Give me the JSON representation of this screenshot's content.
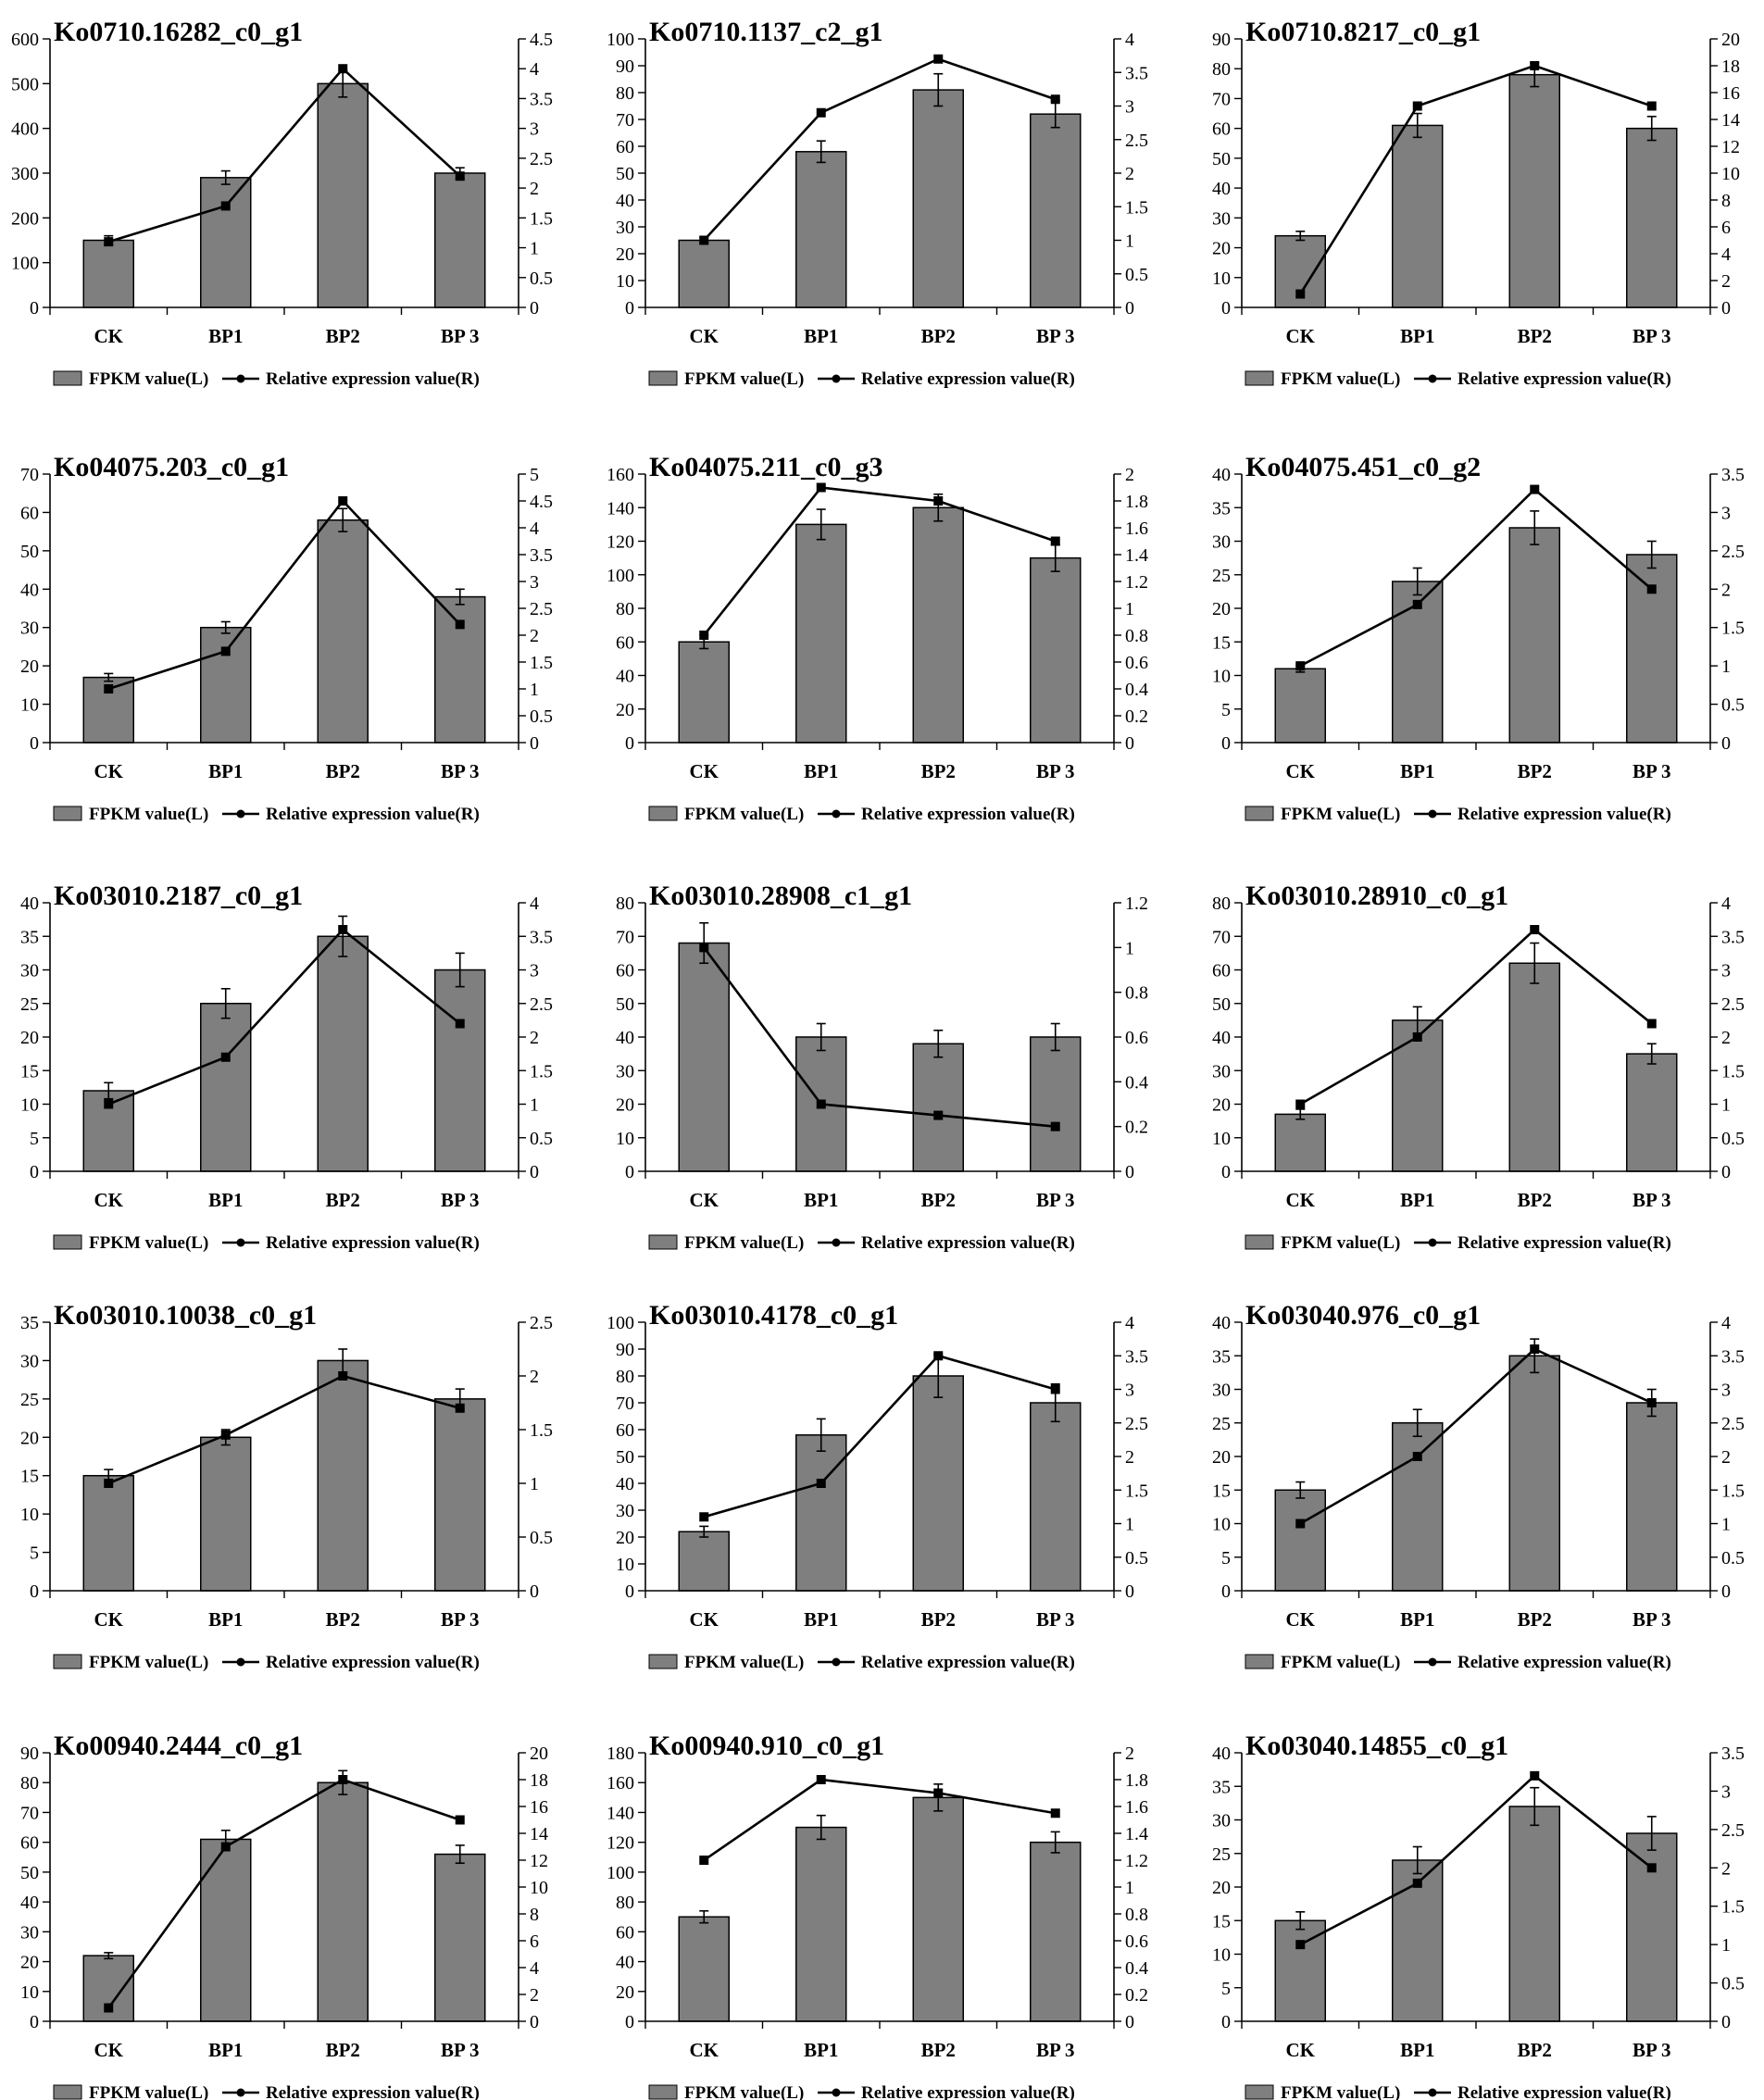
{
  "figure": {
    "legend": {
      "bar_label": "FPKM value(L)",
      "line_label": "Relative expression value(R)"
    },
    "colors": {
      "bar": "#7f7f7f",
      "line": "#000000",
      "axis": "#000000"
    }
  },
  "chart_data": [
    {
      "type": "bar+line",
      "title": "Ko0710.16282_c0_g1",
      "categories": [
        "CK",
        "BP1",
        "BP2",
        "BP 3"
      ],
      "left_ticks": [
        "0",
        "100",
        "200",
        "300",
        "400",
        "500",
        "600"
      ],
      "ylim_left": [
        0,
        600
      ],
      "right_ticks": [
        "0",
        "0.5",
        "1",
        "1.5",
        "2",
        "2.5",
        "3",
        "3.5",
        "4",
        "4.5"
      ],
      "ylim_right": [
        0,
        4.5
      ],
      "fpkm": [
        150,
        290,
        500,
        300
      ],
      "fpkm_err": [
        10,
        15,
        30,
        12
      ],
      "relative": [
        1.1,
        1.7,
        4.0,
        2.2
      ]
    },
    {
      "type": "bar+line",
      "title": "Ko0710.1137_c2_g1",
      "categories": [
        "CK",
        "BP1",
        "BP2",
        "BP 3"
      ],
      "left_ticks": [
        "0",
        "10",
        "20",
        "30",
        "40",
        "50",
        "60",
        "70",
        "80",
        "90",
        "100"
      ],
      "ylim_left": [
        0,
        100
      ],
      "right_ticks": [
        "0",
        "0.5",
        "1",
        "1.5",
        "2",
        "2.5",
        "3",
        "3.5",
        "4"
      ],
      "ylim_right": [
        0,
        4
      ],
      "fpkm": [
        25,
        58,
        81,
        72
      ],
      "fpkm_err": [
        1,
        4,
        6,
        5
      ],
      "relative": [
        1.0,
        2.9,
        3.7,
        3.1
      ]
    },
    {
      "type": "bar+line",
      "title": "Ko0710.8217_c0_g1",
      "categories": [
        "CK",
        "BP1",
        "BP2",
        "BP 3"
      ],
      "left_ticks": [
        "0",
        "10",
        "20",
        "30",
        "40",
        "50",
        "60",
        "70",
        "80",
        "90"
      ],
      "ylim_left": [
        0,
        90
      ],
      "right_ticks": [
        "0",
        "2",
        "4",
        "6",
        "8",
        "10",
        "12",
        "14",
        "16",
        "18",
        "20"
      ],
      "ylim_right": [
        0,
        20
      ],
      "fpkm": [
        24,
        61,
        78,
        60
      ],
      "fpkm_err": [
        1.5,
        4,
        4,
        4
      ],
      "relative": [
        1,
        15,
        18,
        15
      ]
    },
    {
      "type": "bar+line",
      "title": "Ko04075.203_c0_g1",
      "categories": [
        "CK",
        "BP1",
        "BP2",
        "BP 3"
      ],
      "left_ticks": [
        "0",
        "10",
        "20",
        "30",
        "40",
        "50",
        "60",
        "70"
      ],
      "ylim_left": [
        0,
        70
      ],
      "right_ticks": [
        "0",
        "0.5",
        "1",
        "1.5",
        "2",
        "2.5",
        "3",
        "3.5",
        "4",
        "4.5",
        "5"
      ],
      "ylim_right": [
        0,
        5
      ],
      "fpkm": [
        17,
        30,
        58,
        38
      ],
      "fpkm_err": [
        1,
        1.5,
        3,
        2
      ],
      "relative": [
        1.0,
        1.7,
        4.5,
        2.2
      ]
    },
    {
      "type": "bar+line",
      "title": "Ko04075.211_c0_g3",
      "categories": [
        "CK",
        "BP1",
        "BP2",
        "BP 3"
      ],
      "left_ticks": [
        "0",
        "20",
        "40",
        "60",
        "80",
        "100",
        "120",
        "140",
        "160"
      ],
      "ylim_left": [
        0,
        160
      ],
      "right_ticks": [
        "0",
        "0.2",
        "0.4",
        "0.6",
        "0.8",
        "1",
        "1.2",
        "1.4",
        "1.6",
        "1.8",
        "2"
      ],
      "ylim_right": [
        0,
        2
      ],
      "fpkm": [
        60,
        130,
        140,
        110
      ],
      "fpkm_err": [
        4,
        9,
        8,
        8
      ],
      "relative": [
        0.8,
        1.9,
        1.8,
        1.5
      ]
    },
    {
      "type": "bar+line",
      "title": "Ko04075.451_c0_g2",
      "categories": [
        "CK",
        "BP1",
        "BP2",
        "BP 3"
      ],
      "left_ticks": [
        "0",
        "5",
        "10",
        "15",
        "20",
        "25",
        "30",
        "35",
        "40"
      ],
      "ylim_left": [
        0,
        40
      ],
      "right_ticks": [
        "0",
        "0.5",
        "1",
        "1.5",
        "2",
        "2.5",
        "3",
        "3.5"
      ],
      "ylim_right": [
        0,
        3.5
      ],
      "fpkm": [
        11,
        24,
        32,
        28
      ],
      "fpkm_err": [
        0.5,
        2,
        2.5,
        2
      ],
      "relative": [
        1.0,
        1.8,
        3.3,
        2.0
      ]
    },
    {
      "type": "bar+line",
      "title": "Ko03010.2187_c0_g1",
      "categories": [
        "CK",
        "BP1",
        "BP2",
        "BP 3"
      ],
      "left_ticks": [
        "0",
        "5",
        "10",
        "15",
        "20",
        "25",
        "30",
        "35",
        "40"
      ],
      "ylim_left": [
        0,
        40
      ],
      "right_ticks": [
        "0",
        "0.5",
        "1",
        "1.5",
        "2",
        "2.5",
        "3",
        "3.5",
        "4"
      ],
      "ylim_right": [
        0,
        4
      ],
      "fpkm": [
        12,
        25,
        35,
        30
      ],
      "fpkm_err": [
        1.2,
        2.2,
        3,
        2.5
      ],
      "relative": [
        1.0,
        1.7,
        3.6,
        2.2
      ]
    },
    {
      "type": "bar+line",
      "title": "Ko03010.28908_c1_g1",
      "categories": [
        "CK",
        "BP1",
        "BP2",
        "BP 3"
      ],
      "left_ticks": [
        "0",
        "10",
        "20",
        "30",
        "40",
        "50",
        "60",
        "70",
        "80"
      ],
      "ylim_left": [
        0,
        80
      ],
      "right_ticks": [
        "0",
        "0.2",
        "0.4",
        "0.6",
        "0.8",
        "1",
        "1.2"
      ],
      "ylim_right": [
        0,
        1.2
      ],
      "fpkm": [
        68,
        40,
        38,
        40
      ],
      "fpkm_err": [
        6,
        4,
        4,
        4
      ],
      "relative": [
        1.0,
        0.3,
        0.25,
        0.2
      ]
    },
    {
      "type": "bar+line",
      "title": "Ko03010.28910_c0_g1",
      "categories": [
        "CK",
        "BP1",
        "BP2",
        "BP 3"
      ],
      "left_ticks": [
        "0",
        "10",
        "20",
        "30",
        "40",
        "50",
        "60",
        "70",
        "80"
      ],
      "ylim_left": [
        0,
        80
      ],
      "right_ticks": [
        "0",
        "0.5",
        "1",
        "1.5",
        "2",
        "2.5",
        "3",
        "3.5",
        "4"
      ],
      "ylim_right": [
        0,
        4
      ],
      "fpkm": [
        17,
        45,
        62,
        35
      ],
      "fpkm_err": [
        1.5,
        4,
        6,
        3
      ],
      "relative": [
        1.0,
        2.0,
        3.6,
        2.2
      ]
    },
    {
      "type": "bar+line",
      "title": "Ko03010.10038_c0_g1",
      "categories": [
        "CK",
        "BP1",
        "BP2",
        "BP 3"
      ],
      "left_ticks": [
        "0",
        "5",
        "10",
        "15",
        "20",
        "25",
        "30",
        "35"
      ],
      "ylim_left": [
        0,
        35
      ],
      "right_ticks": [
        "0",
        "0.5",
        "1",
        "1.5",
        "2",
        "2.5"
      ],
      "ylim_right": [
        0,
        2.5
      ],
      "fpkm": [
        15,
        20,
        30,
        25
      ],
      "fpkm_err": [
        0.8,
        1,
        1.5,
        1.3
      ],
      "relative": [
        1.0,
        1.45,
        2.0,
        1.7
      ]
    },
    {
      "type": "bar+line",
      "title": "Ko03010.4178_c0_g1",
      "categories": [
        "CK",
        "BP1",
        "BP2",
        "BP 3"
      ],
      "left_ticks": [
        "0",
        "10",
        "20",
        "30",
        "40",
        "50",
        "60",
        "70",
        "80",
        "90",
        "100"
      ],
      "ylim_left": [
        0,
        100
      ],
      "right_ticks": [
        "0",
        "0.5",
        "1",
        "1.5",
        "2",
        "2.5",
        "3",
        "3.5",
        "4"
      ],
      "ylim_right": [
        0,
        4
      ],
      "fpkm": [
        22,
        58,
        80,
        70
      ],
      "fpkm_err": [
        2,
        6,
        8,
        7
      ],
      "relative": [
        1.1,
        1.6,
        3.5,
        3.0
      ]
    },
    {
      "type": "bar+line",
      "title": "Ko03040.976_c0_g1",
      "categories": [
        "CK",
        "BP1",
        "BP2",
        "BP 3"
      ],
      "left_ticks": [
        "0",
        "5",
        "10",
        "15",
        "20",
        "25",
        "30",
        "35",
        "40"
      ],
      "ylim_left": [
        0,
        40
      ],
      "right_ticks": [
        "0",
        "0.5",
        "1",
        "1.5",
        "2",
        "2.5",
        "3",
        "3.5",
        "4"
      ],
      "ylim_right": [
        0,
        4
      ],
      "fpkm": [
        15,
        25,
        35,
        28
      ],
      "fpkm_err": [
        1.2,
        2,
        2.5,
        2
      ],
      "relative": [
        1.0,
        2.0,
        3.6,
        2.8
      ]
    },
    {
      "type": "bar+line",
      "title": "Ko00940.2444_c0_g1",
      "categories": [
        "CK",
        "BP1",
        "BP2",
        "BP 3"
      ],
      "left_ticks": [
        "0",
        "10",
        "20",
        "30",
        "40",
        "50",
        "60",
        "70",
        "80",
        "90"
      ],
      "ylim_left": [
        0,
        90
      ],
      "right_ticks": [
        "0",
        "2",
        "4",
        "6",
        "8",
        "10",
        "12",
        "14",
        "16",
        "18",
        "20"
      ],
      "ylim_right": [
        0,
        20
      ],
      "fpkm": [
        22,
        61,
        80,
        56
      ],
      "fpkm_err": [
        1,
        3,
        4,
        3
      ],
      "relative": [
        1,
        13,
        18,
        15
      ]
    },
    {
      "type": "bar+line",
      "title": "Ko00940.910_c0_g1",
      "categories": [
        "CK",
        "BP1",
        "BP2",
        "BP 3"
      ],
      "left_ticks": [
        "0",
        "20",
        "40",
        "60",
        "80",
        "100",
        "120",
        "140",
        "160",
        "180"
      ],
      "ylim_left": [
        0,
        180
      ],
      "right_ticks": [
        "0",
        "0.2",
        "0.4",
        "0.6",
        "0.8",
        "1",
        "1.2",
        "1.4",
        "1.6",
        "1.8",
        "2"
      ],
      "ylim_right": [
        0,
        2
      ],
      "fpkm": [
        70,
        130,
        150,
        120
      ],
      "fpkm_err": [
        4,
        8,
        9,
        7
      ],
      "relative": [
        1.2,
        1.8,
        1.7,
        1.55
      ]
    },
    {
      "type": "bar+line",
      "title": "Ko03040.14855_c0_g1",
      "categories": [
        "CK",
        "BP1",
        "BP2",
        "BP 3"
      ],
      "left_ticks": [
        "0",
        "5",
        "10",
        "15",
        "20",
        "25",
        "30",
        "35",
        "40"
      ],
      "ylim_left": [
        0,
        40
      ],
      "right_ticks": [
        "0",
        "0.5",
        "1",
        "1.5",
        "2",
        "2.5",
        "3",
        "3.5"
      ],
      "ylim_right": [
        0,
        3.5
      ],
      "fpkm": [
        15,
        24,
        32,
        28
      ],
      "fpkm_err": [
        1.3,
        2,
        2.8,
        2.5
      ],
      "relative": [
        1.0,
        1.8,
        3.2,
        2.0
      ]
    }
  ]
}
